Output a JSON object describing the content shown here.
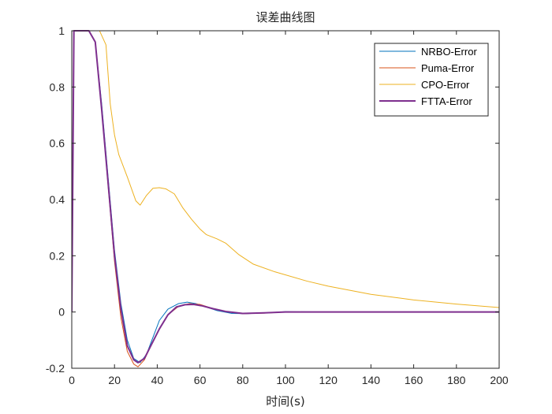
{
  "chart_data": {
    "type": "line",
    "title": "误差曲线图",
    "xlabel": "时间(s)",
    "ylabel": "",
    "xlim": [
      0,
      200
    ],
    "ylim": [
      -0.2,
      1
    ],
    "xticks": [
      0,
      20,
      40,
      60,
      80,
      100,
      120,
      140,
      160,
      180,
      200
    ],
    "yticks": [
      -0.2,
      0,
      0.2,
      0.4,
      0.6,
      0.8,
      1
    ],
    "xtick_labels": [
      "0",
      "20",
      "40",
      "60",
      "80",
      "100",
      "120",
      "140",
      "160",
      "180",
      "200"
    ],
    "ytick_labels": [
      "-0.2",
      "0",
      "0.2",
      "0.4",
      "0.6",
      "0.8",
      "1"
    ],
    "grid": false,
    "legend_position": "top-right",
    "series": [
      {
        "name": "NRBO-Error",
        "color": "#0072BD",
        "width": 1,
        "points": [
          [
            0,
            0
          ],
          [
            1,
            1
          ],
          [
            8,
            1
          ],
          [
            11,
            0.96
          ],
          [
            14,
            0.74
          ],
          [
            17,
            0.48
          ],
          [
            20,
            0.22
          ],
          [
            23,
            0.03
          ],
          [
            26,
            -0.1
          ],
          [
            29,
            -0.165
          ],
          [
            32,
            -0.18
          ],
          [
            35,
            -0.15
          ],
          [
            38,
            -0.09
          ],
          [
            41,
            -0.03
          ],
          [
            45,
            0.01
          ],
          [
            50,
            0.03
          ],
          [
            54,
            0.035
          ],
          [
            58,
            0.03
          ],
          [
            62,
            0.02
          ],
          [
            68,
            0.005
          ],
          [
            75,
            -0.005
          ],
          [
            82,
            -0.006
          ],
          [
            90,
            -0.003
          ],
          [
            100,
            0.001
          ],
          [
            120,
            0
          ],
          [
            200,
            0
          ]
        ]
      },
      {
        "name": "Puma-Error",
        "color": "#D95319",
        "width": 1,
        "points": [
          [
            0,
            0
          ],
          [
            1,
            1
          ],
          [
            8,
            1
          ],
          [
            11,
            0.96
          ],
          [
            14,
            0.72
          ],
          [
            17,
            0.45
          ],
          [
            20,
            0.18
          ],
          [
            23,
            -0.02
          ],
          [
            26,
            -0.14
          ],
          [
            29,
            -0.185
          ],
          [
            31,
            -0.195
          ],
          [
            34,
            -0.17
          ],
          [
            37,
            -0.12
          ],
          [
            41,
            -0.06
          ],
          [
            45,
            -0.01
          ],
          [
            50,
            0.02
          ],
          [
            55,
            0.03
          ],
          [
            60,
            0.027
          ],
          [
            65,
            0.015
          ],
          [
            72,
            0.002
          ],
          [
            80,
            -0.006
          ],
          [
            90,
            -0.004
          ],
          [
            100,
            0
          ],
          [
            200,
            0
          ]
        ]
      },
      {
        "name": "CPO-Error",
        "color": "#EDB120",
        "width": 1,
        "points": [
          [
            0,
            0
          ],
          [
            1,
            1
          ],
          [
            13,
            1
          ],
          [
            16,
            0.95
          ],
          [
            18,
            0.74
          ],
          [
            20,
            0.63
          ],
          [
            22,
            0.56
          ],
          [
            26,
            0.48
          ],
          [
            30,
            0.395
          ],
          [
            32,
            0.38
          ],
          [
            35,
            0.415
          ],
          [
            38,
            0.44
          ],
          [
            41,
            0.442
          ],
          [
            44,
            0.438
          ],
          [
            48,
            0.42
          ],
          [
            52,
            0.37
          ],
          [
            56,
            0.33
          ],
          [
            60,
            0.295
          ],
          [
            63,
            0.275
          ],
          [
            68,
            0.26
          ],
          [
            72,
            0.245
          ],
          [
            78,
            0.205
          ],
          [
            85,
            0.17
          ],
          [
            95,
            0.143
          ],
          [
            110,
            0.11
          ],
          [
            120,
            0.092
          ],
          [
            140,
            0.063
          ],
          [
            160,
            0.043
          ],
          [
            180,
            0.028
          ],
          [
            200,
            0.016
          ]
        ]
      },
      {
        "name": "FTTA-Error",
        "color": "#7E2F8E",
        "width": 2,
        "points": [
          [
            0,
            0
          ],
          [
            1,
            1
          ],
          [
            8,
            1
          ],
          [
            11,
            0.96
          ],
          [
            14,
            0.72
          ],
          [
            17,
            0.46
          ],
          [
            20,
            0.2
          ],
          [
            23,
            0.01
          ],
          [
            26,
            -0.12
          ],
          [
            29,
            -0.17
          ],
          [
            31,
            -0.18
          ],
          [
            34,
            -0.165
          ],
          [
            37,
            -0.12
          ],
          [
            41,
            -0.06
          ],
          [
            45,
            -0.01
          ],
          [
            49,
            0.018
          ],
          [
            53,
            0.026
          ],
          [
            57,
            0.027
          ],
          [
            61,
            0.022
          ],
          [
            66,
            0.012
          ],
          [
            72,
            0.002
          ],
          [
            80,
            -0.005
          ],
          [
            90,
            -0.003
          ],
          [
            100,
            0
          ],
          [
            200,
            0
          ]
        ]
      }
    ]
  }
}
